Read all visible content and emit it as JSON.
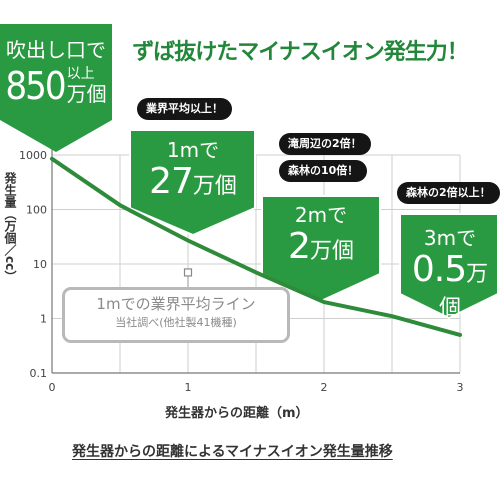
{
  "headline": "ずば抜けたマイナスイオン発生力！",
  "outlet_badge": {
    "line1": "吹出し口で",
    "number": "850",
    "above": "以上",
    "unit": "万個"
  },
  "callouts": [
    {
      "badges": [
        "業界平均以上！"
      ],
      "distance": "1mで",
      "amount": "27",
      "unit": "万個"
    },
    {
      "badges": [
        "滝周辺の2倍！",
        "森林の10倍！"
      ],
      "distance": "2mで",
      "amount": "2",
      "unit": "万個"
    },
    {
      "badges": [
        "森林の2倍以上！"
      ],
      "distance": "3mで",
      "amount": "0.5",
      "unit": "万個"
    }
  ],
  "industry_average": {
    "label": "1mでの業界平均ライン",
    "note": "当社調べ(他社製41機種)",
    "x": 1,
    "y": 7
  },
  "colors": {
    "green": "#2a9a42",
    "line": "#2e8b3a",
    "badge_bg": "#151515",
    "legend_border": "#b9b9b9"
  },
  "chart_data": {
    "type": "line",
    "title": "",
    "ylabel": "発生量（万個／cc）",
    "xlabel": "発生器からの距離（m）",
    "y_scale": "log",
    "ylim": [
      0.1,
      1000
    ],
    "xlim": [
      0,
      3
    ],
    "xticks": [
      "0",
      "1",
      "2",
      "3"
    ],
    "yticks": [
      "1000",
      "100",
      "10",
      "1",
      "0.1"
    ],
    "grid": true,
    "series": [
      {
        "x": [
          0,
          0.5,
          1,
          1.5,
          2,
          2.5,
          3
        ],
        "y": [
          850,
          120,
          27,
          7,
          2,
          1.1,
          0.5
        ]
      }
    ]
  },
  "caption": "発生器からの距離によるマイナスイオン発生量推移"
}
